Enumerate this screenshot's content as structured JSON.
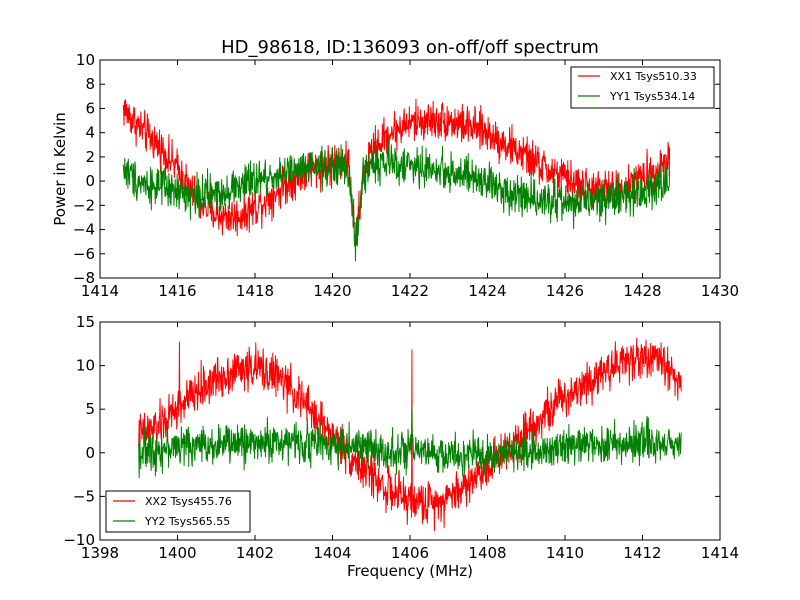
{
  "figure": {
    "title": "HD_98618, ID:136093 on-off/off spectrum"
  },
  "chart_data": [
    {
      "type": "line",
      "title": "HD_98618, ID:136093 on-off/off spectrum",
      "xlabel": "",
      "ylabel": "Power in Kelvin",
      "xlim": [
        1414,
        1430
      ],
      "ylim": [
        -8,
        10
      ],
      "xticks": [
        1414,
        1416,
        1418,
        1420,
        1422,
        1424,
        1426,
        1428,
        1430
      ],
      "yticks": [
        -8,
        -6,
        -4,
        -2,
        0,
        2,
        4,
        6,
        8,
        10
      ],
      "grid": false,
      "legend_position": "top-right",
      "series": [
        {
          "name": "XX1 Tsys510.33",
          "color": "#ff0000",
          "x": [
            1414.6,
            1415.0,
            1415.5,
            1416.0,
            1416.5,
            1417.0,
            1417.5,
            1418.0,
            1418.5,
            1419.0,
            1419.5,
            1420.0,
            1420.4,
            1420.6,
            1420.8,
            1421.0,
            1421.5,
            1422.0,
            1422.5,
            1423.0,
            1423.5,
            1424.0,
            1424.5,
            1425.0,
            1425.5,
            1426.0,
            1426.5,
            1427.0,
            1427.5,
            1428.0,
            1428.5,
            1428.7
          ],
          "values": [
            6.0,
            4.5,
            3.0,
            1.0,
            -1.5,
            -2.8,
            -3.0,
            -2.2,
            -1.0,
            0.2,
            1.0,
            1.5,
            1.8,
            -5.0,
            0.5,
            2.5,
            4.0,
            4.8,
            5.0,
            5.0,
            4.5,
            4.0,
            3.0,
            2.0,
            1.0,
            0.2,
            -0.5,
            -0.8,
            -0.5,
            0.2,
            1.5,
            2.0
          ],
          "noise": 1.6
        },
        {
          "name": "YY1 Tsys534.14",
          "color": "#008000",
          "x": [
            1414.6,
            1415.0,
            1415.5,
            1416.0,
            1416.5,
            1417.0,
            1417.5,
            1418.0,
            1418.5,
            1419.0,
            1419.5,
            1420.0,
            1420.4,
            1420.6,
            1420.8,
            1421.0,
            1421.5,
            1422.0,
            1422.5,
            1423.0,
            1423.5,
            1424.0,
            1424.5,
            1425.0,
            1425.5,
            1426.0,
            1426.5,
            1427.0,
            1427.5,
            1428.0,
            1428.5,
            1428.7
          ],
          "values": [
            1.0,
            0.0,
            -0.5,
            -1.0,
            -1.2,
            -1.0,
            -0.5,
            0.0,
            0.5,
            0.8,
            1.0,
            1.2,
            1.2,
            -5.5,
            0.5,
            1.5,
            1.5,
            1.2,
            1.0,
            0.8,
            0.3,
            -0.2,
            -0.8,
            -1.2,
            -1.5,
            -1.8,
            -1.8,
            -1.5,
            -1.2,
            -0.8,
            -0.3,
            0.0
          ],
          "noise": 1.6
        }
      ]
    },
    {
      "type": "line",
      "title": "",
      "xlabel": "Frequency (MHz)",
      "ylabel": "",
      "xlim": [
        1398,
        1414
      ],
      "ylim": [
        -10,
        15
      ],
      "xticks": [
        1398,
        1400,
        1402,
        1404,
        1406,
        1408,
        1410,
        1412,
        1414
      ],
      "yticks": [
        -10,
        -5,
        0,
        5,
        10,
        15
      ],
      "grid": false,
      "legend_position": "bottom-left",
      "series": [
        {
          "name": "XX2 Tsys455.76",
          "color": "#ff0000",
          "x": [
            1399.0,
            1399.5,
            1400.0,
            1400.5,
            1401.0,
            1401.5,
            1402.0,
            1402.5,
            1403.0,
            1403.5,
            1404.0,
            1404.5,
            1405.0,
            1405.5,
            1406.0,
            1406.5,
            1407.0,
            1407.5,
            1408.0,
            1408.5,
            1409.0,
            1409.5,
            1410.0,
            1410.5,
            1411.0,
            1411.5,
            1412.0,
            1412.5,
            1413.0
          ],
          "values": [
            2.0,
            3.0,
            5.0,
            7.0,
            8.5,
            9.5,
            9.8,
            9.0,
            7.0,
            4.5,
            2.0,
            -0.5,
            -2.5,
            -4.5,
            -5.5,
            -5.8,
            -5.0,
            -3.5,
            -1.5,
            0.5,
            2.5,
            4.5,
            6.5,
            8.0,
            9.5,
            10.5,
            11.0,
            10.5,
            8.0
          ],
          "noise": 2.4,
          "spikes": [
            {
              "x": 1400.05,
              "y": 12.7
            },
            {
              "x": 1406.05,
              "y": 11.8
            }
          ]
        },
        {
          "name": "YY2 Tsys565.55",
          "color": "#008000",
          "x": [
            1399.0,
            1400.0,
            1401.0,
            1402.0,
            1403.0,
            1404.0,
            1405.0,
            1406.0,
            1407.0,
            1408.0,
            1409.0,
            1410.0,
            1411.0,
            1412.0,
            1413.0
          ],
          "values": [
            0.0,
            0.8,
            1.0,
            1.2,
            1.2,
            1.0,
            0.5,
            0.0,
            -0.3,
            -0.2,
            0.2,
            0.8,
            1.0,
            1.2,
            1.0
          ],
          "noise": 2.2,
          "spikes": [
            {
              "x": 1406.05,
              "y": 5.3
            }
          ]
        }
      ]
    }
  ]
}
